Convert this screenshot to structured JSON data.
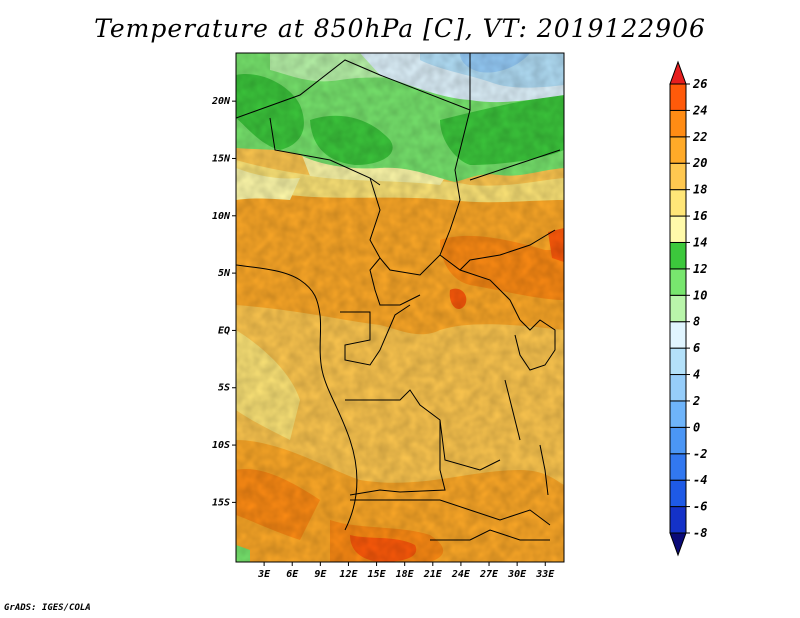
{
  "title": "Temperature at 850hPa [C], VT: 2019122906",
  "credit": "GrADS: IGES/COLA",
  "map": {
    "variable": "Temperature at 850hPa",
    "units": "C",
    "valid_time": "2019122906",
    "lon_range": [
      0,
      35
    ],
    "lat_range": [
      -20.2,
      24.2
    ],
    "lat_ticks": [
      {
        "value": 20,
        "label": "20N"
      },
      {
        "value": 15,
        "label": "15N"
      },
      {
        "value": 10,
        "label": "10N"
      },
      {
        "value": 5,
        "label": "5N"
      },
      {
        "value": 0,
        "label": "EQ"
      },
      {
        "value": -5,
        "label": "5S"
      },
      {
        "value": -10,
        "label": "10S"
      },
      {
        "value": -15,
        "label": "15S"
      }
    ],
    "lon_ticks": [
      {
        "value": 3,
        "label": "3E"
      },
      {
        "value": 6,
        "label": "6E"
      },
      {
        "value": 9,
        "label": "9E"
      },
      {
        "value": 12,
        "label": "12E"
      },
      {
        "value": 15,
        "label": "15E"
      },
      {
        "value": 18,
        "label": "18E"
      },
      {
        "value": 21,
        "label": "21E"
      },
      {
        "value": 24,
        "label": "24E"
      },
      {
        "value": 27,
        "label": "27E"
      },
      {
        "value": 30,
        "label": "30E"
      },
      {
        "value": 33,
        "label": "33E"
      }
    ]
  },
  "colorbar": {
    "bins": [
      {
        "color": "#0a0a78",
        "upper": -8
      },
      {
        "color": "#1432c8",
        "upper": -6
      },
      {
        "color": "#1e5ae6",
        "upper": -4
      },
      {
        "color": "#3278f0",
        "upper": -2
      },
      {
        "color": "#4b96f5",
        "upper": 0
      },
      {
        "color": "#6eb4fa",
        "upper": 2
      },
      {
        "color": "#96cdfa",
        "upper": 4
      },
      {
        "color": "#b4e1fa",
        "upper": 6
      },
      {
        "color": "#e1f5ff",
        "upper": 8
      },
      {
        "color": "#b9f5aa",
        "upper": 10
      },
      {
        "color": "#78e66e",
        "upper": 12
      },
      {
        "color": "#3cc83c",
        "upper": 14
      },
      {
        "color": "#fffaaa",
        "upper": 16
      },
      {
        "color": "#ffe678",
        "upper": 18
      },
      {
        "color": "#ffc850",
        "upper": 20
      },
      {
        "color": "#ffaa28",
        "upper": 22
      },
      {
        "color": "#ff8c14",
        "upper": 24
      },
      {
        "color": "#ff5a0a",
        "upper": 26
      },
      {
        "color": "#e61e1e",
        "upper": null
      }
    ],
    "labels": [
      "26",
      "24",
      "22",
      "20",
      "18",
      "16",
      "14",
      "12",
      "10",
      "8",
      "6",
      "4",
      "2",
      "0",
      "-2",
      "-4",
      "-6",
      "-8"
    ]
  }
}
